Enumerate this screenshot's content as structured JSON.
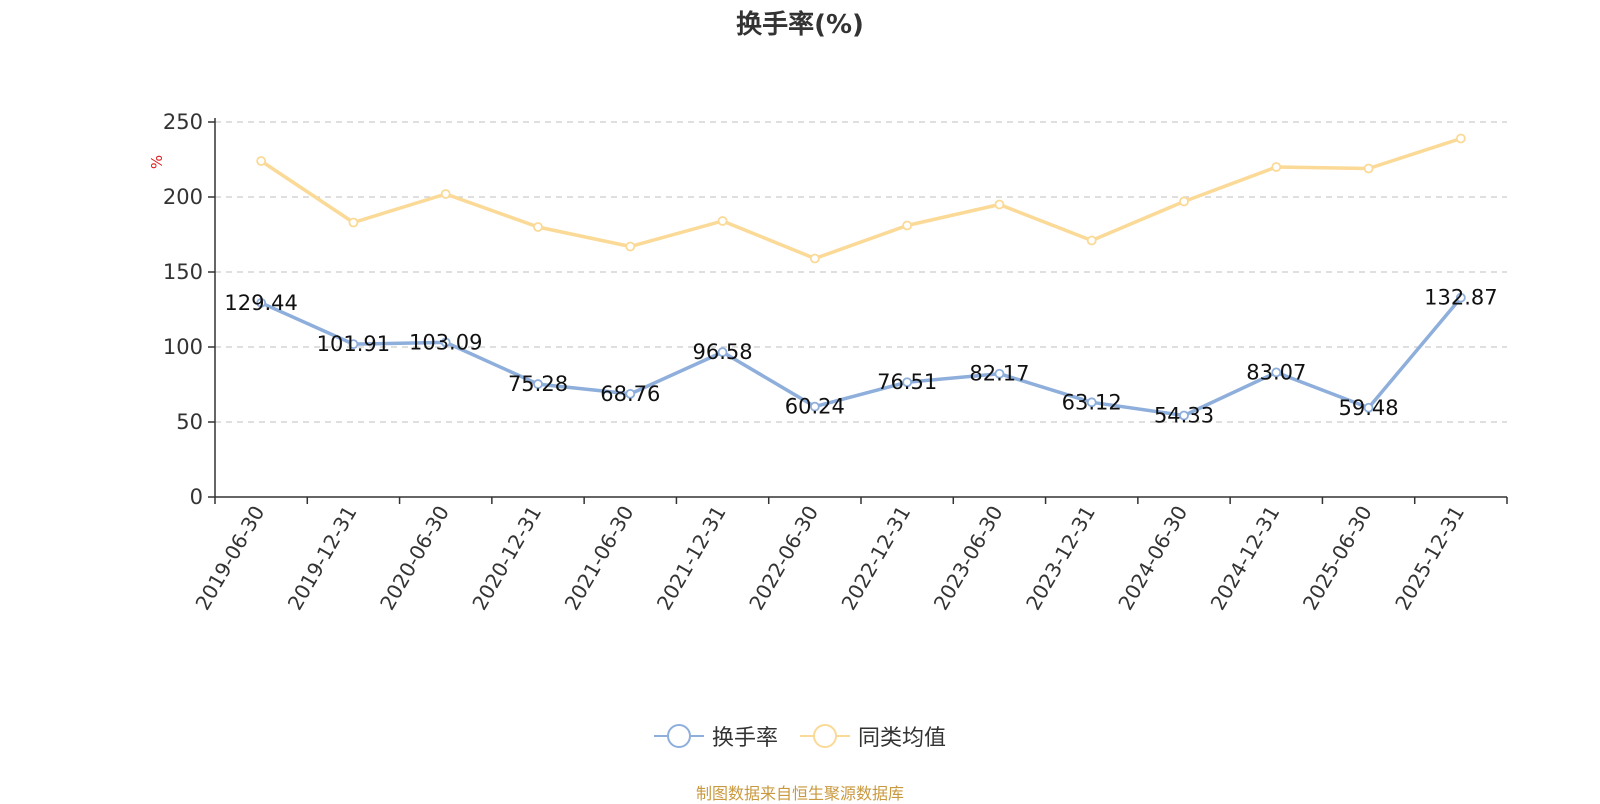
{
  "colors": {
    "turnover": "#8eaedb",
    "peer_avg": "#fbd996",
    "axis": "#333333",
    "grid": "#cccccc",
    "ylabel": "#e02020",
    "source": "#c9993f"
  },
  "legend": {
    "turnover_label": "换手率",
    "peer_label": "同类均值"
  },
  "source_note": "制图数据来自恒生聚源数据库",
  "chart_data": {
    "type": "line",
    "title": "换手率(%)",
    "ylabel": "%",
    "xlabel": "",
    "ylim": [
      0,
      250
    ],
    "yticks": [
      0,
      50,
      100,
      150,
      200,
      250
    ],
    "grid": true,
    "legend_position": "bottom",
    "categories": [
      "2019-06-30",
      "2019-12-31",
      "2020-06-30",
      "2020-12-31",
      "2021-06-30",
      "2021-12-31",
      "2022-06-30",
      "2022-12-31",
      "2023-06-30",
      "2023-12-31",
      "2024-06-30",
      "2024-12-31",
      "2025-06-30",
      "2025-12-31"
    ],
    "series": [
      {
        "name": "换手率",
        "values": [
          129.44,
          101.91,
          103.09,
          75.28,
          68.76,
          96.58,
          60.24,
          76.51,
          82.17,
          63.12,
          54.33,
          83.07,
          59.48,
          132.87
        ],
        "show_labels": true
      },
      {
        "name": "同类均值",
        "values": [
          224,
          183,
          202,
          180,
          167,
          184,
          159,
          181,
          195,
          171,
          197,
          220,
          219,
          239
        ],
        "show_labels": false
      }
    ]
  }
}
